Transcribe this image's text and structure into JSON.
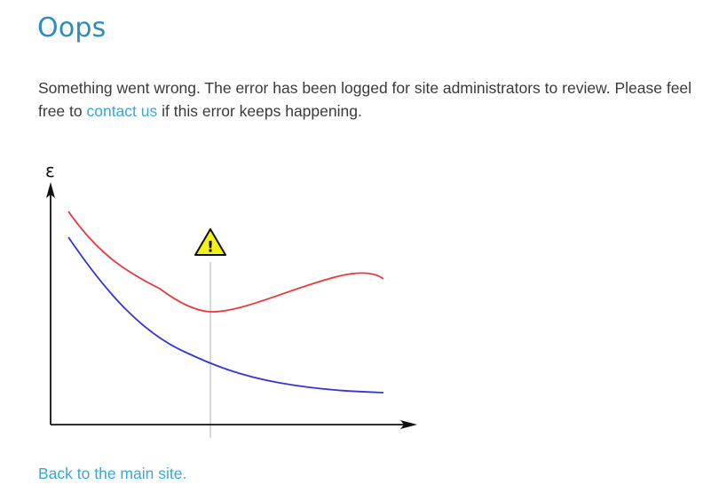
{
  "page": {
    "title": "Oops",
    "message_before_link": "Something went wrong. The error has been logged for site administrators to review. Please feel free to ",
    "contact_link": "contact us",
    "message_after_link": " if this error keeps happening.",
    "back_link": "Back to the main site."
  },
  "illustration": {
    "y_axis_symbol": "ε",
    "warning_glyph": "!",
    "colors": {
      "upper_curve": "#e8383a",
      "lower_curve": "#3535d8",
      "axes": "#111111",
      "marker_line": "#cccccc",
      "warning_fill": "#f4f215",
      "warning_stroke": "#111111"
    }
  },
  "colors": {
    "title": "#2a8cbf",
    "link": "#3aa6d6",
    "text": "#3a3a3a",
    "background": "#ffffff"
  }
}
